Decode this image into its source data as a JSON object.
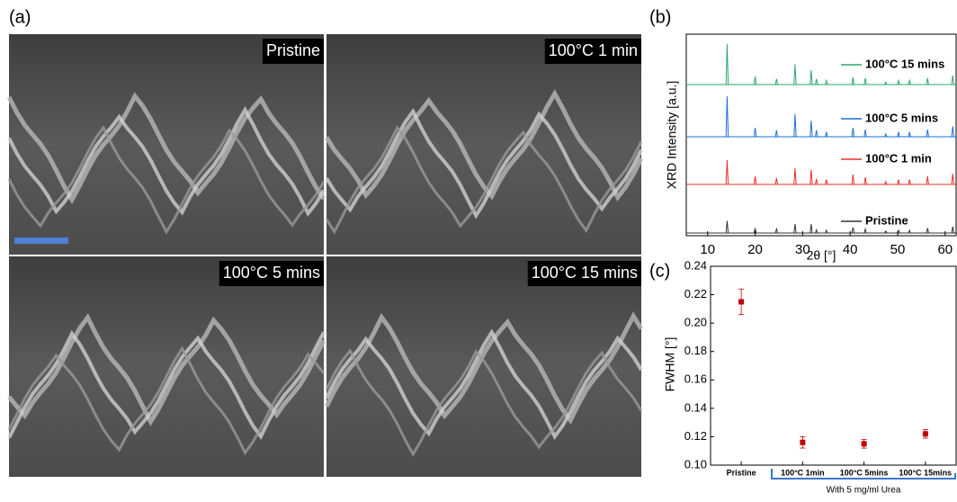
{
  "panel_labels": [
    "(a)",
    "(b)",
    "(c)"
  ],
  "sem_images": {
    "labels": [
      "Pristine",
      "100°C 1 min",
      "100°C 5 mins",
      "100°C 15 mins"
    ]
  },
  "chart_data": [
    {
      "type": "xrd",
      "ylabel": "XRD Intensity [a.u.]",
      "xlabel": "2θ [°]",
      "xlim": [
        5.5,
        62.5
      ],
      "xticks": [
        10,
        20,
        30,
        40,
        50,
        60
      ],
      "x": [
        14.1,
        20.0,
        24.5,
        28.4,
        31.8,
        32.9,
        35.0,
        40.6,
        43.2,
        47.5,
        50.2,
        52.5,
        56.3,
        61.6
      ],
      "series": [
        {
          "name": "Pristine",
          "color": "#333333",
          "values": [
            30,
            12,
            10,
            22,
            22,
            8,
            7,
            14,
            10,
            5,
            7,
            7,
            12,
            16
          ]
        },
        {
          "name": "100°C 1 min",
          "color": "#e8302a",
          "values": [
            60,
            20,
            16,
            40,
            36,
            14,
            12,
            24,
            18,
            7,
            12,
            12,
            20,
            26
          ]
        },
        {
          "name": "100°C 5 mins",
          "color": "#1f6fd6",
          "values": [
            100,
            22,
            16,
            56,
            40,
            16,
            12,
            22,
            18,
            7,
            12,
            12,
            18,
            26
          ]
        },
        {
          "name": "100°C 15 mins",
          "color": "#2aa86b",
          "values": [
            100,
            20,
            14,
            50,
            36,
            14,
            10,
            18,
            16,
            6,
            10,
            10,
            16,
            22
          ]
        }
      ]
    },
    {
      "type": "errorbar",
      "ylabel": "FWHM [°]",
      "categories": [
        "Pristine",
        "100°C 1min",
        "100°C 5mins",
        "100°C 15mins"
      ],
      "values": [
        0.215,
        0.116,
        0.115,
        0.122
      ],
      "errors": [
        0.009,
        0.004,
        0.003,
        0.003
      ],
      "color": "#c00000",
      "ylim": [
        0.1,
        0.24
      ],
      "yticks": [
        {
          "value": 0.1,
          "label": "0.10"
        },
        {
          "value": 0.12,
          "label": "0.12"
        },
        {
          "value": 0.14,
          "label": "0.14"
        },
        {
          "value": 0.16,
          "label": "0.16"
        },
        {
          "value": 0.18,
          "label": "0.18"
        },
        {
          "value": 0.2,
          "label": "0.20"
        },
        {
          "value": 0.22,
          "label": "0.22"
        },
        {
          "value": 0.24,
          "label": "0.24"
        }
      ],
      "annotation": "With 5 mg/ml Urea"
    }
  ]
}
